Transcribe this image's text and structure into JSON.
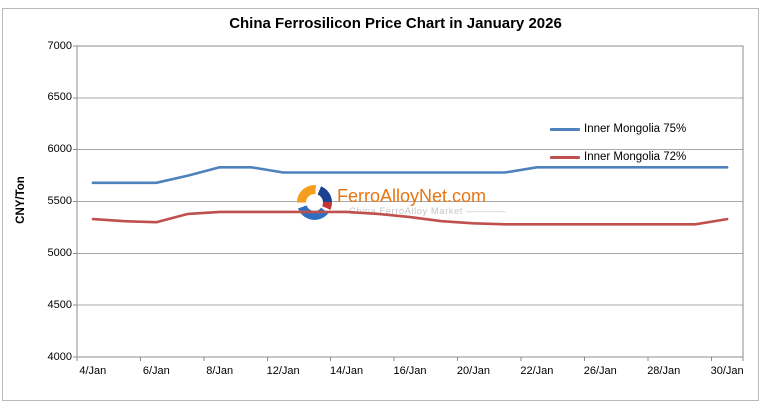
{
  "chart_data": {
    "type": "line",
    "title": "China Ferrosilicon Price Chart in January 2026",
    "xlabel": "",
    "ylabel": "CNY/Ton",
    "ylim": [
      4000,
      7000
    ],
    "yticks": [
      4000,
      4500,
      5000,
      5500,
      6000,
      6500,
      7000
    ],
    "grid": true,
    "legend_position": "inside-right",
    "grid_color": "#a9a9a9",
    "axis_color": "#8c8c8c",
    "categories": [
      "4/Jan",
      "5/Jan",
      "6/Jan",
      "7/Jan",
      "8/Jan",
      "11/Jan",
      "12/Jan",
      "13/Jan",
      "14/Jan",
      "15/Jan",
      "16/Jan",
      "19/Jan",
      "20/Jan",
      "21/Jan",
      "22/Jan",
      "25/Jan",
      "26/Jan",
      "27/Jan",
      "28/Jan",
      "29/Jan",
      "30/Jan"
    ],
    "xtick_labels_shown": [
      "4/Jan",
      "6/Jan",
      "8/Jan",
      "12/Jan",
      "14/Jan",
      "16/Jan",
      "20/Jan",
      "22/Jan",
      "26/Jan",
      "28/Jan",
      "30/Jan"
    ],
    "series": [
      {
        "name": "Inner Mongolia 75%",
        "color": "#4f81bd",
        "values": [
          5680,
          5680,
          5680,
          5750,
          5830,
          5830,
          5780,
          5780,
          5780,
          5780,
          5780,
          5780,
          5780,
          5780,
          5830,
          5830,
          5830,
          5830,
          5830,
          5830,
          5830
        ]
      },
      {
        "name": "Inner Mongolia 72%",
        "color": "#c0504d",
        "values": [
          5330,
          5310,
          5300,
          5380,
          5400,
          5400,
          5400,
          5400,
          5400,
          5380,
          5350,
          5310,
          5290,
          5280,
          5280,
          5280,
          5280,
          5280,
          5280,
          5280,
          5330
        ]
      }
    ]
  },
  "watermark": {
    "site": "FerroAlloyNet.com",
    "subtitle": "China FerroAlloy Market ————",
    "site_color": "#e87511"
  }
}
